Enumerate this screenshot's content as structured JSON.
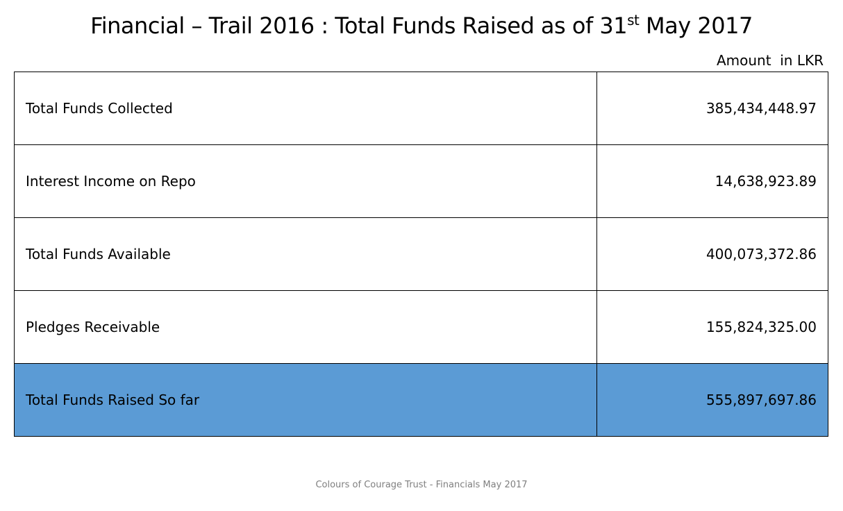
{
  "header": {
    "title_main": "Financial – Trail 2016 : Total Funds Raised as of 31",
    "title_sup": "st",
    "title_end": " May 2017",
    "unit_label": "Amount  in LKR"
  },
  "table": {
    "rows": [
      {
        "label": "Total Funds Collected",
        "amount": "385,434,448.97"
      },
      {
        "label": "Interest Income on Repo",
        "amount": "14,638,923.89"
      },
      {
        "label": "Total Funds Available",
        "amount": "400,073,372.86"
      },
      {
        "label": "Pledges Receivable",
        "amount": "155,824,325.00"
      },
      {
        "label": "Total Funds Raised So far",
        "amount": "555,897,697.86"
      }
    ],
    "highlight_color": "#5b9bd5"
  },
  "footer": {
    "text": "Colours of Courage Trust - Financials May 2017"
  }
}
